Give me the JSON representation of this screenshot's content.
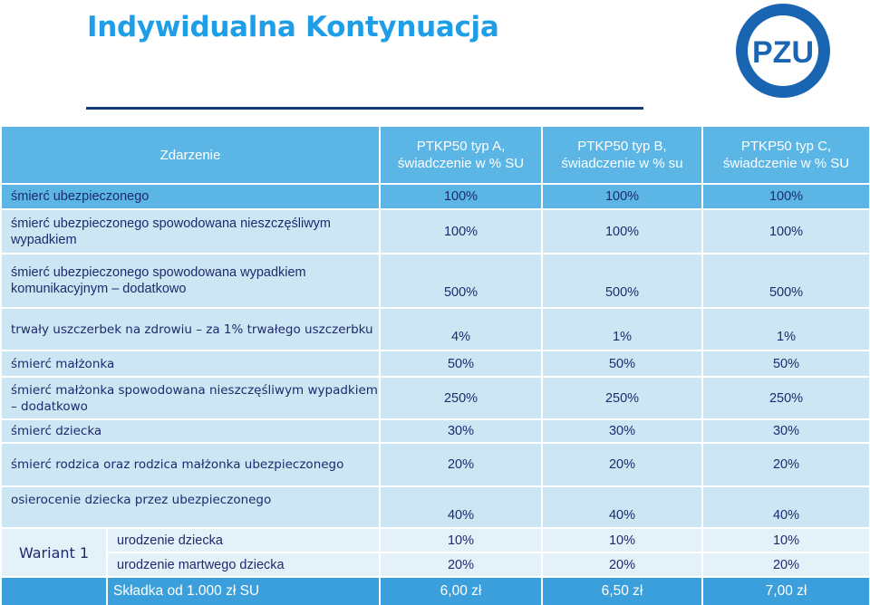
{
  "header": {
    "title": "Indywidualna Kontynuacja"
  },
  "brand": {
    "logo_text": "PZU",
    "color": "#1a65b2"
  },
  "table": {
    "columns": [
      "Zdarzenie",
      "PTKP50 typ A, świadczenie w % SU",
      "PTKP50 typ B, świadczenie w % su",
      "PTKP50 typ C, świadczenie w % SU"
    ],
    "rows": [
      {
        "label": "śmierć ubezpieczonego",
        "values": [
          "100%",
          "100%",
          "100%"
        ]
      },
      {
        "label": "śmierć ubezpieczonego spowodowana nieszczęśliwym wypadkiem",
        "values": [
          "100%",
          "100%",
          "100%"
        ]
      },
      {
        "label": "śmierć ubezpieczonego spowodowana wypadkiem komunikacyjnym – dodatkowo",
        "values": [
          "500%",
          "500%",
          "500%"
        ]
      },
      {
        "label": "trwały uszczerbek na zdrowiu – za 1% trwałego uszczerbku",
        "values": [
          "4%",
          "1%",
          "1%"
        ]
      },
      {
        "label": "śmierć małżonka",
        "values": [
          "50%",
          "50%",
          "50%"
        ]
      },
      {
        "label": "śmierć małżonka spowodowana nieszczęśliwym wypadkiem – dodatkowo",
        "values": [
          "250%",
          "250%",
          "250%"
        ]
      },
      {
        "label": "śmierć dziecka",
        "values": [
          "30%",
          "30%",
          "30%"
        ]
      },
      {
        "label": "śmierć rodzica oraz rodzica małżonka ubezpieczonego",
        "values": [
          "20%",
          "20%",
          "20%"
        ]
      },
      {
        "label": "osierocenie dziecka przez ubezpieczonego",
        "values": [
          "40%",
          "40%",
          "40%"
        ]
      }
    ],
    "variant": {
      "label": "Wariant 1",
      "rows": [
        {
          "label": "urodzenie dziecka",
          "values": [
            "10%",
            "10%",
            "10%"
          ]
        },
        {
          "label": "urodzenie martwego dziecka",
          "values": [
            "20%",
            "20%",
            "20%"
          ]
        }
      ]
    },
    "premium": {
      "label": "Składka od 1.000 zł SU",
      "values": [
        "6,00 zł",
        "6,50 zł",
        "7,00 zł"
      ]
    }
  }
}
